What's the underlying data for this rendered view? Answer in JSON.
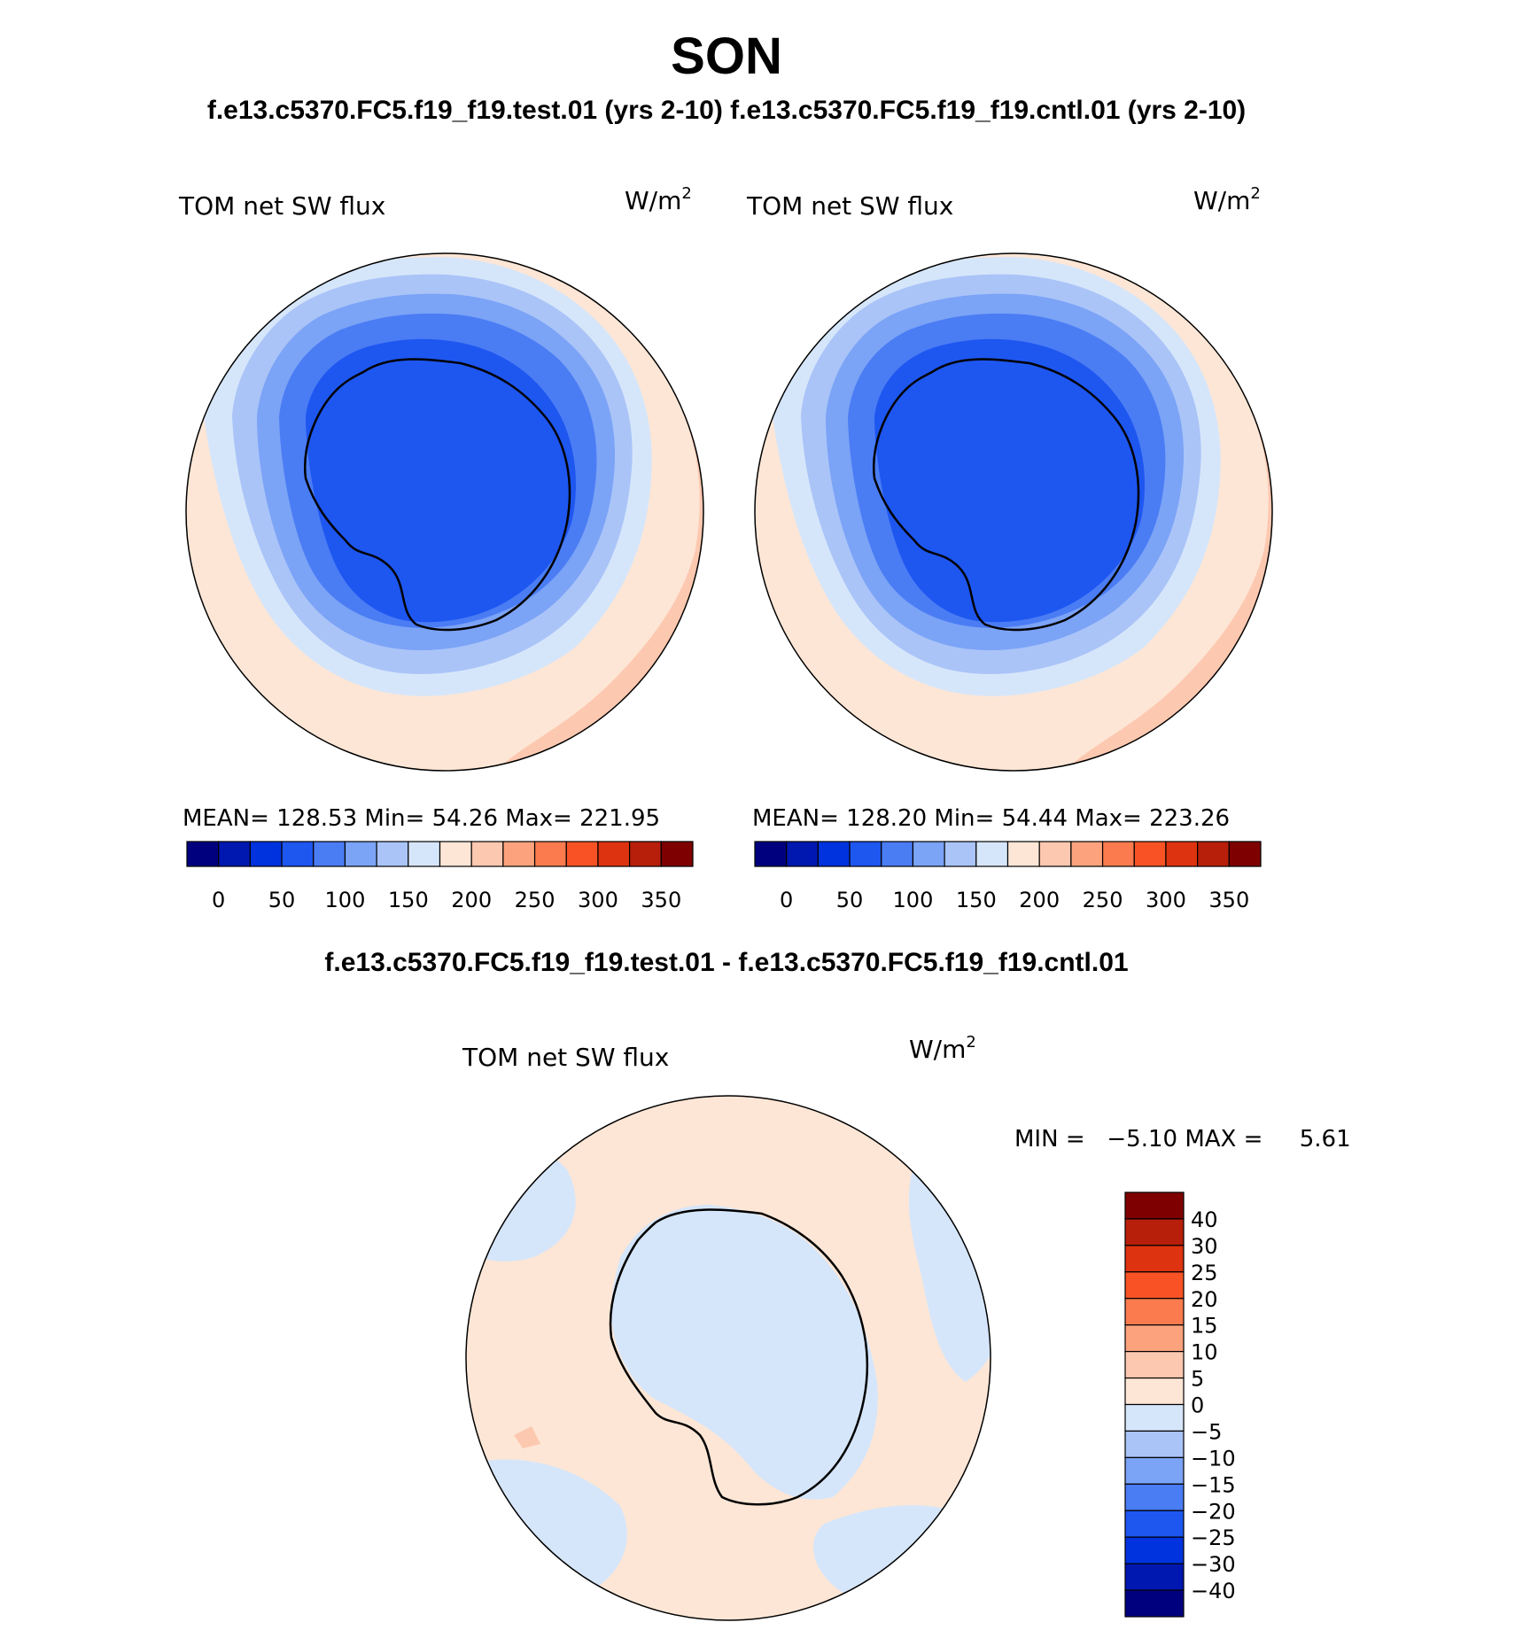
{
  "header": {
    "title": "SON",
    "subtitle": "f.e13.c5370.FC5.f19_f19.test.01 (yrs 2-10) f.e13.c5370.FC5.f19_f19.cntl.01 (yrs 2-10)",
    "diff_title": "f.e13.c5370.FC5.f19_f19.test.01 - f.e13.c5370.FC5.f19_f19.cntl.01"
  },
  "panels": [
    {
      "variable": "TOM net SW flux",
      "units_base": "W/m",
      "units_exp": "2",
      "stats": "MEAN= 128.53   Min=   54.26   Max= 221.95"
    },
    {
      "variable": "TOM net SW flux",
      "units_base": "W/m",
      "units_exp": "2",
      "stats": "MEAN= 128.20   Min=   54.44   Max= 223.26"
    }
  ],
  "main_colorbar": {
    "colors": [
      "#00007f",
      "#0018b0",
      "#0033de",
      "#1e56f0",
      "#4a7cf4",
      "#7ba3f6",
      "#aac4f8",
      "#d6e6fa",
      "#fde6d6",
      "#fdc8b0",
      "#fca37e",
      "#fc7b4e",
      "#f95325",
      "#de3310",
      "#b81f0b",
      "#7f0000"
    ],
    "tick_labels": [
      "0",
      "50",
      "100",
      "150",
      "200",
      "250",
      "300",
      "350"
    ]
  },
  "diff_panel": {
    "variable": "TOM net SW flux",
    "units_base": "W/m",
    "units_exp": "2",
    "stats": "MIN =   −5.10 MAX =     5.61"
  },
  "diff_colorbar": {
    "colors": [
      "#7f0000",
      "#b81f0b",
      "#de3310",
      "#f95325",
      "#fc7b4e",
      "#fca37e",
      "#fdc8b0",
      "#fde6d6",
      "#d6e6fa",
      "#aac4f8",
      "#7ba3f6",
      "#4a7cf4",
      "#1e56f0",
      "#0033de",
      "#0018b0",
      "#00007f"
    ],
    "tick_labels": [
      "40",
      "30",
      "25",
      "20",
      "15",
      "10",
      "5",
      "0",
      "−5",
      "−10",
      "−15",
      "−20",
      "−25",
      "−30",
      "−40"
    ]
  }
}
